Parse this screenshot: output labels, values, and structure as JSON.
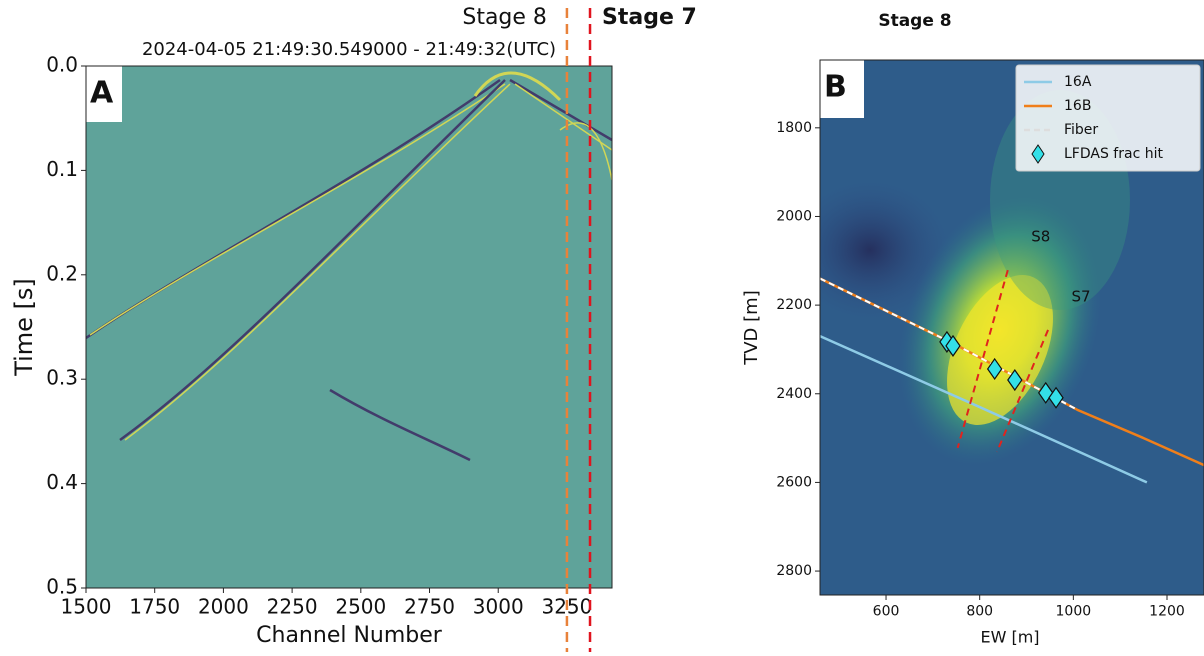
{
  "chart_data": [
    {
      "type": "image",
      "title": "2024-04-05 21:49:30.549000 - 21:49:32(UTC)",
      "panel": "A",
      "xlabel": "Channel Number",
      "ylabel": "Time [s]",
      "xlim": [
        1500,
        3414
      ],
      "ylim": [
        0,
        0.5
      ],
      "y_inverted": true,
      "xticks": [
        1500,
        1750,
        2000,
        2250,
        2500,
        2750,
        3000,
        3250
      ],
      "yticks": [
        {
          "value": 0,
          "label": "0.0"
        },
        0.1,
        0.2,
        0.3,
        0.4,
        0.5
      ],
      "markers": [
        {
          "label": "Stage 8",
          "x": 3250,
          "color": "#e8823a"
        },
        {
          "label": "Stage 7",
          "x": 3334,
          "color": "#e0141e"
        }
      ]
    },
    {
      "type": "line",
      "title": "Stage 8",
      "panel": "B",
      "xlabel": "EW [m]",
      "ylabel": "TVD [m]",
      "xlim": [
        459,
        1279
      ],
      "ylim": [
        1647,
        2854
      ],
      "y_inverted": true,
      "xticks": [
        600,
        800,
        1000,
        1200
      ],
      "yticks": [
        1800,
        2000,
        2200,
        2400,
        2600,
        2800
      ],
      "legend": "upper right",
      "series": [
        {
          "name": "16A",
          "color": "#8ecbe6",
          "style": "solid",
          "x": [
            459,
            800,
            1157
          ],
          "y": [
            2270,
            2430,
            2600
          ]
        },
        {
          "name": "16B",
          "color": "#f07f1a",
          "style": "solid",
          "x": [
            459,
            750,
            1010,
            1150,
            1279
          ],
          "y": [
            2140,
            2290,
            2437,
            2500,
            2561
          ]
        },
        {
          "name": "Fiber",
          "color": "#ffffff",
          "style": "dashed",
          "x": [
            459,
            750,
            1010
          ],
          "y": [
            2140,
            2290,
            2437
          ]
        },
        {
          "name": "LFDAS frac hit",
          "color": "#33e0e8",
          "style": "marker",
          "x": [
            730,
            743,
            832,
            875,
            941,
            963
          ],
          "y": [
            2283,
            2292,
            2344,
            2369,
            2398,
            2409
          ]
        }
      ],
      "stage_lines": [
        {
          "label": "S8",
          "color": "#e0231e",
          "x": [
            860,
            753
          ],
          "y": [
            2121,
            2522
          ]
        },
        {
          "label": "S7",
          "color": "#e0231e",
          "x": [
            946,
            837
          ],
          "y": [
            2256,
            2531
          ]
        }
      ]
    }
  ]
}
